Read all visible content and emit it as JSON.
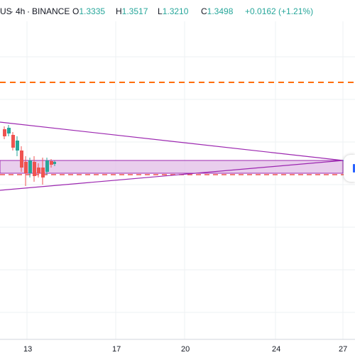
{
  "header": {
    "symbol_tail": "US",
    "interval": "4h",
    "exchange": "BINANCE",
    "open_key": "O",
    "open_val": "1.3335",
    "high_key": "H",
    "high_val": "1.3517",
    "low_key": "L",
    "low_val": "1.3210",
    "close_key": "C",
    "close_val": "1.3498",
    "change": "+0.0162 (+1.21%)"
  },
  "colors": {
    "up": "#26a69a",
    "down": "#ef5350",
    "triangle": "#9c27b0",
    "zone_fill": "#e1bee7",
    "dashed_level": "#ff6d00",
    "grid": "#eef0f3"
  },
  "xaxis": {
    "labels": [
      "13",
      "17",
      "20",
      "24",
      "27"
    ]
  },
  "icons": {
    "side_tab": "panel-toggle-icon"
  }
}
